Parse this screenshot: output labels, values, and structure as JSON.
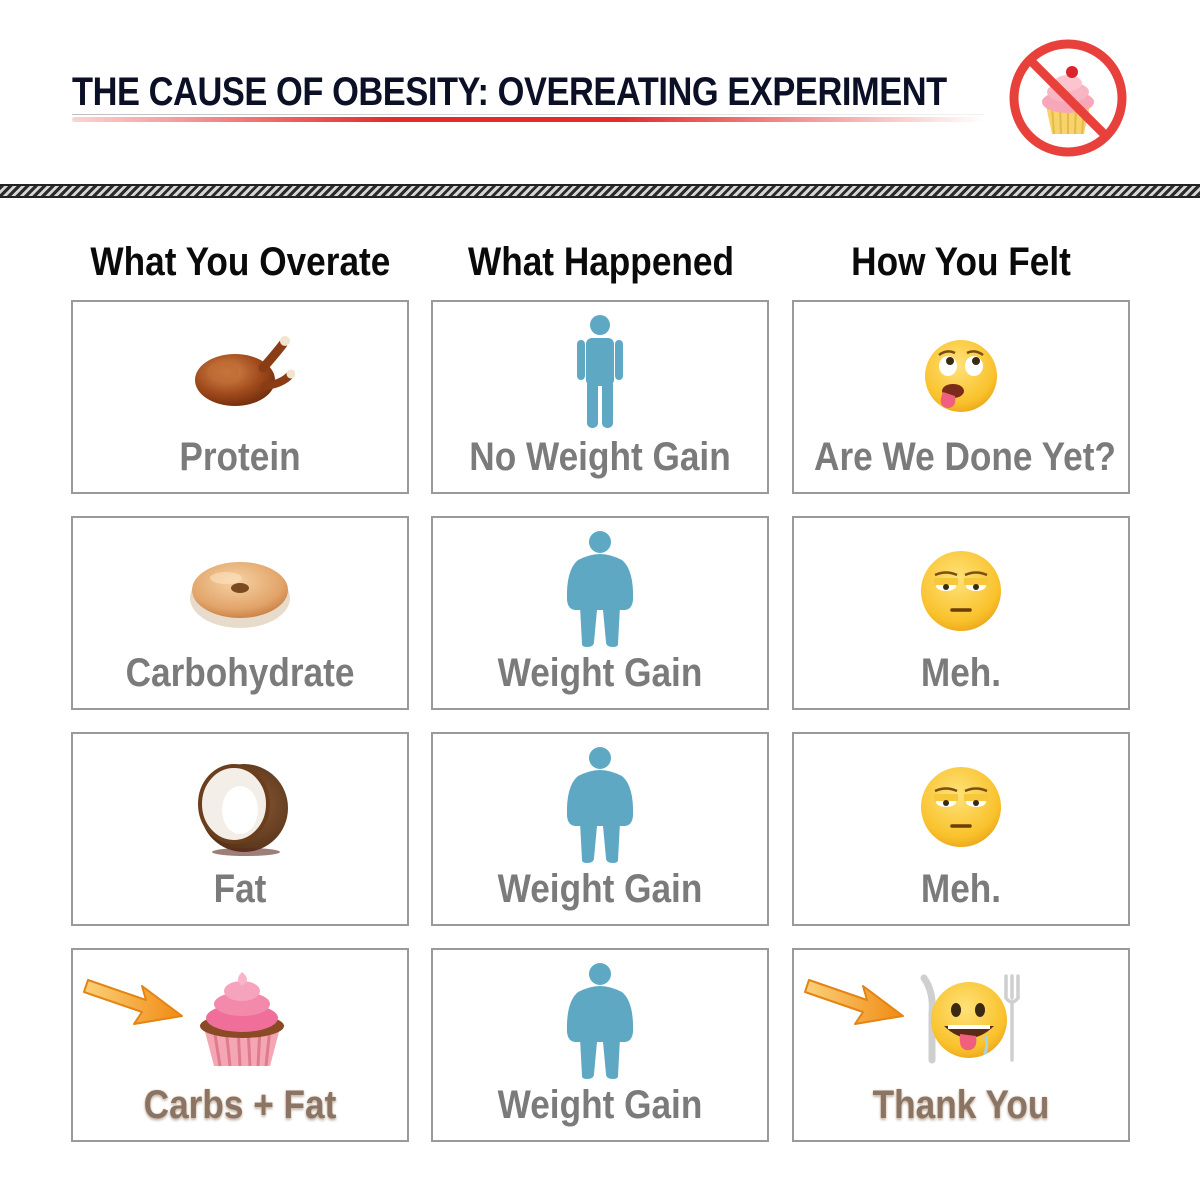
{
  "header": {
    "title": "THE CAUSE OF OBESITY:  OVEREATING EXPERIMENT",
    "badge_icon": "no-cupcake-icon"
  },
  "columns": [
    {
      "label": "What You Overate"
    },
    {
      "label": "What Happened"
    },
    {
      "label": "How You Felt"
    }
  ],
  "rows": [
    {
      "food": {
        "label": "Protein",
        "icon": "roast-chicken-icon"
      },
      "result": {
        "label": "No Weight Gain",
        "icon": "thin-person-icon"
      },
      "feeling": {
        "label": "Are We Done Yet?",
        "icon": "nauseated-face-icon"
      }
    },
    {
      "food": {
        "label": "Carbohydrate",
        "icon": "bagel-icon"
      },
      "result": {
        "label": "Weight Gain",
        "icon": "heavy-person-icon"
      },
      "feeling": {
        "label": "Meh.",
        "icon": "unamused-face-icon"
      }
    },
    {
      "food": {
        "label": "Fat",
        "icon": "coconut-icon"
      },
      "result": {
        "label": "Weight Gain",
        "icon": "heavy-person-icon"
      },
      "feeling": {
        "label": "Meh.",
        "icon": "unamused-face-icon"
      }
    },
    {
      "food": {
        "label": "Carbs + Fat",
        "icon": "cupcake-icon",
        "highlighted": true
      },
      "result": {
        "label": "Weight Gain",
        "icon": "heavy-person-icon"
      },
      "feeling": {
        "label": "Thank You",
        "icon": "drooling-face-with-cutlery-icon",
        "highlighted": true
      }
    }
  ],
  "colors": {
    "title": "#0b1026",
    "underline": "#e42b2b",
    "label_gray": "#7b7b7b",
    "label_highlight": "#8b7464",
    "person_blue": "#5fa8c4",
    "arrow_orange": "#f39a1e",
    "prohibit_red": "#e8413c"
  }
}
